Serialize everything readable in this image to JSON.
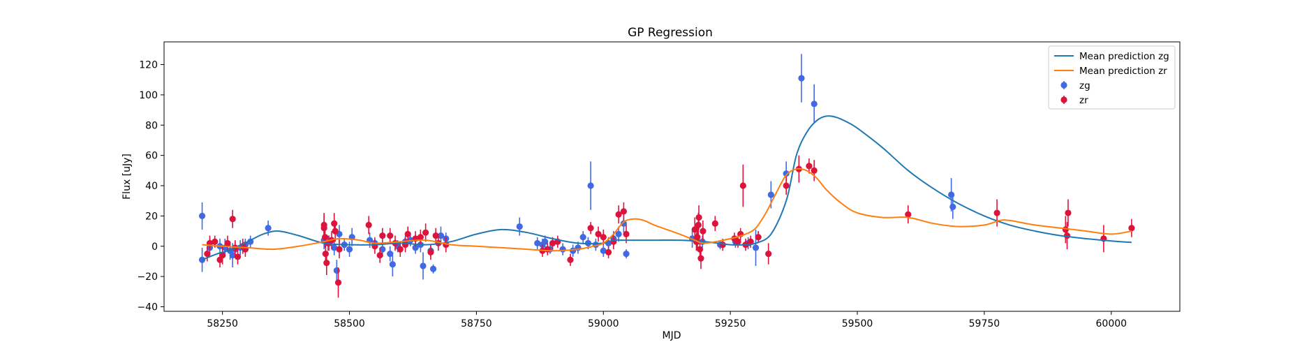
{
  "chart_data": {
    "type": "scatter",
    "title": "GP Regression",
    "xlabel": "MJD",
    "ylabel": "Flux [uJy]",
    "xlim": [
      58135,
      60135
    ],
    "ylim": [
      -43,
      135
    ],
    "xticks": [
      58250,
      58500,
      58750,
      59000,
      59250,
      59500,
      59750,
      60000
    ],
    "yticks": [
      -40,
      -20,
      0,
      20,
      40,
      60,
      80,
      100,
      120
    ],
    "grid": false,
    "legend_position": "top-right",
    "legend": [
      "Mean prediction zg",
      "Mean prediction zr",
      "zg",
      "zr"
    ],
    "colors": {
      "zg_line": "#1f77b4",
      "zr_line": "#ff7f0e",
      "zg_points": "#4169e1",
      "zr_points": "#dc143c"
    },
    "series": [
      {
        "name": "Mean prediction zg",
        "kind": "line",
        "points": [
          [
            58210,
            -9
          ],
          [
            58240,
            -5
          ],
          [
            58270,
            -2
          ],
          [
            58300,
            3
          ],
          [
            58330,
            8
          ],
          [
            58360,
            10
          ],
          [
            58400,
            7
          ],
          [
            58450,
            2
          ],
          [
            58500,
            1
          ],
          [
            58550,
            1
          ],
          [
            58600,
            2
          ],
          [
            58650,
            1
          ],
          [
            58700,
            3
          ],
          [
            58750,
            8
          ],
          [
            58800,
            11
          ],
          [
            58850,
            9
          ],
          [
            58900,
            5
          ],
          [
            58950,
            2
          ],
          [
            59000,
            2
          ],
          [
            59020,
            4
          ],
          [
            59040,
            4
          ],
          [
            59100,
            4
          ],
          [
            59150,
            4
          ],
          [
            59200,
            3
          ],
          [
            59250,
            1
          ],
          [
            59280,
            1
          ],
          [
            59300,
            2
          ],
          [
            59330,
            8
          ],
          [
            59360,
            30
          ],
          [
            59380,
            60
          ],
          [
            59400,
            75
          ],
          [
            59420,
            83
          ],
          [
            59440,
            86
          ],
          [
            59460,
            85
          ],
          [
            59480,
            82
          ],
          [
            59500,
            78
          ],
          [
            59550,
            65
          ],
          [
            59600,
            50
          ],
          [
            59650,
            38
          ],
          [
            59700,
            28
          ],
          [
            59750,
            20
          ],
          [
            59800,
            14
          ],
          [
            59850,
            10
          ],
          [
            59900,
            7
          ],
          [
            59950,
            5
          ],
          [
            60000,
            3.5
          ],
          [
            60040,
            2.5
          ]
        ]
      },
      {
        "name": "Mean prediction zr",
        "kind": "line",
        "points": [
          [
            58210,
            1
          ],
          [
            58250,
            0
          ],
          [
            58300,
            -1
          ],
          [
            58350,
            -2
          ],
          [
            58400,
            0
          ],
          [
            58450,
            3
          ],
          [
            58480,
            5
          ],
          [
            58520,
            4
          ],
          [
            58550,
            2
          ],
          [
            58600,
            3
          ],
          [
            58650,
            4
          ],
          [
            58700,
            1
          ],
          [
            58750,
            0
          ],
          [
            58800,
            -1
          ],
          [
            58850,
            -2
          ],
          [
            58900,
            -3
          ],
          [
            58950,
            -2
          ],
          [
            58980,
            0
          ],
          [
            59000,
            2
          ],
          [
            59020,
            8
          ],
          [
            59040,
            16
          ],
          [
            59060,
            18
          ],
          [
            59080,
            17
          ],
          [
            59100,
            14
          ],
          [
            59150,
            8
          ],
          [
            59180,
            4
          ],
          [
            59200,
            2
          ],
          [
            59250,
            5
          ],
          [
            59280,
            8
          ],
          [
            59300,
            12
          ],
          [
            59320,
            22
          ],
          [
            59340,
            35
          ],
          [
            59360,
            47
          ],
          [
            59380,
            51
          ],
          [
            59400,
            50
          ],
          [
            59420,
            45
          ],
          [
            59440,
            37
          ],
          [
            59470,
            28
          ],
          [
            59500,
            22
          ],
          [
            59550,
            19
          ],
          [
            59600,
            19
          ],
          [
            59650,
            15
          ],
          [
            59700,
            13
          ],
          [
            59750,
            14
          ],
          [
            59780,
            17
          ],
          [
            59800,
            17
          ],
          [
            59850,
            14
          ],
          [
            59900,
            12
          ],
          [
            59950,
            10
          ],
          [
            60000,
            8
          ],
          [
            60040,
            10
          ]
        ]
      },
      {
        "name": "zg",
        "kind": "errorbar",
        "points": [
          [
            58210,
            20,
            9
          ],
          [
            58210,
            -9,
            8
          ],
          [
            58225,
            -1,
            6
          ],
          [
            58245,
            0,
            5
          ],
          [
            58255,
            -1,
            6
          ],
          [
            58265,
            -3,
            6
          ],
          [
            58270,
            -6,
            8
          ],
          [
            58275,
            -2,
            5
          ],
          [
            58285,
            -1,
            5
          ],
          [
            58295,
            1,
            4
          ],
          [
            58305,
            3,
            4
          ],
          [
            58340,
            12,
            5
          ],
          [
            58450,
            4,
            6
          ],
          [
            58460,
            2,
            5
          ],
          [
            58470,
            -1,
            5
          ],
          [
            58475,
            -16,
            7
          ],
          [
            58480,
            8,
            6
          ],
          [
            58490,
            1,
            4
          ],
          [
            58500,
            -2,
            5
          ],
          [
            58505,
            6,
            6
          ],
          [
            58540,
            4,
            5
          ],
          [
            58550,
            2,
            4
          ],
          [
            58565,
            -2,
            5
          ],
          [
            58580,
            -5,
            5
          ],
          [
            58585,
            -12,
            8
          ],
          [
            58595,
            0,
            4
          ],
          [
            58610,
            3,
            4
          ],
          [
            58620,
            4,
            4
          ],
          [
            58630,
            -1,
            4
          ],
          [
            58640,
            1,
            5
          ],
          [
            58645,
            -13,
            9
          ],
          [
            58660,
            -3,
            4
          ],
          [
            58665,
            -15,
            3
          ],
          [
            58680,
            7,
            6
          ],
          [
            58690,
            5,
            4
          ],
          [
            58835,
            13,
            6
          ],
          [
            58870,
            2,
            4
          ],
          [
            58880,
            1,
            4
          ],
          [
            58885,
            3,
            4
          ],
          [
            58895,
            -2,
            3
          ],
          [
            58920,
            -2,
            4
          ],
          [
            58940,
            -3,
            4
          ],
          [
            58950,
            -1,
            4
          ],
          [
            58960,
            6,
            4
          ],
          [
            58970,
            2,
            4
          ],
          [
            58975,
            40,
            16
          ],
          [
            58985,
            1,
            4
          ],
          [
            59000,
            -3,
            4
          ],
          [
            59010,
            2,
            4
          ],
          [
            59020,
            5,
            5
          ],
          [
            59030,
            8,
            5
          ],
          [
            59040,
            15,
            6
          ],
          [
            59045,
            -5,
            3
          ],
          [
            59175,
            5,
            6
          ],
          [
            59185,
            3,
            5
          ],
          [
            59195,
            3,
            4
          ],
          [
            59230,
            1,
            3
          ],
          [
            59260,
            3,
            4
          ],
          [
            59285,
            2,
            4
          ],
          [
            59300,
            -1,
            12
          ],
          [
            59330,
            34,
            9
          ],
          [
            59360,
            48,
            8
          ],
          [
            59390,
            111,
            16
          ],
          [
            59415,
            94,
            13
          ],
          [
            59685,
            34,
            11
          ],
          [
            59688,
            26,
            8
          ]
        ]
      },
      {
        "name": "zr",
        "kind": "errorbar",
        "points": [
          [
            58220,
            -5,
            5
          ],
          [
            58225,
            2,
            5
          ],
          [
            58235,
            3,
            4
          ],
          [
            58245,
            -9,
            5
          ],
          [
            58250,
            -6,
            6
          ],
          [
            58260,
            2,
            5
          ],
          [
            58270,
            18,
            6
          ],
          [
            58275,
            -1,
            5
          ],
          [
            58280,
            -7,
            5
          ],
          [
            58290,
            0,
            5
          ],
          [
            58295,
            -2,
            5
          ],
          [
            58450,
            14,
            8
          ],
          [
            58450,
            12,
            8
          ],
          [
            58452,
            6,
            7
          ],
          [
            58453,
            -5,
            8
          ],
          [
            58455,
            -11,
            8
          ],
          [
            58458,
            2,
            5
          ],
          [
            58465,
            4,
            6
          ],
          [
            58470,
            15,
            7
          ],
          [
            58472,
            10,
            7
          ],
          [
            58478,
            -24,
            10
          ],
          [
            58480,
            -2,
            6
          ],
          [
            58538,
            14,
            6
          ],
          [
            58550,
            0,
            5
          ],
          [
            58560,
            -6,
            5
          ],
          [
            58565,
            7,
            5
          ],
          [
            58580,
            7,
            5
          ],
          [
            58590,
            2,
            5
          ],
          [
            58600,
            -2,
            5
          ],
          [
            58610,
            1,
            5
          ],
          [
            58615,
            8,
            5
          ],
          [
            58630,
            5,
            5
          ],
          [
            58640,
            6,
            5
          ],
          [
            58650,
            9,
            6
          ],
          [
            58660,
            -4,
            5
          ],
          [
            58670,
            7,
            5
          ],
          [
            58675,
            2,
            5
          ],
          [
            58690,
            1,
            5
          ],
          [
            58880,
            -3,
            4
          ],
          [
            58890,
            -2,
            4
          ],
          [
            58900,
            2,
            4
          ],
          [
            58910,
            3,
            4
          ],
          [
            58935,
            -9,
            4
          ],
          [
            58975,
            12,
            4
          ],
          [
            58990,
            8,
            5
          ],
          [
            59000,
            6,
            5
          ],
          [
            59010,
            -4,
            4
          ],
          [
            59020,
            3,
            5
          ],
          [
            59030,
            21,
            6
          ],
          [
            59040,
            23,
            6
          ],
          [
            59045,
            8,
            6
          ],
          [
            59180,
            11,
            8
          ],
          [
            59183,
            3,
            6
          ],
          [
            59185,
            6,
            7
          ],
          [
            59187,
            14,
            8
          ],
          [
            59188,
            19,
            8
          ],
          [
            59190,
            -2,
            6
          ],
          [
            59192,
            -8,
            7
          ],
          [
            59196,
            10,
            7
          ],
          [
            59220,
            15,
            5
          ],
          [
            59235,
            1,
            4
          ],
          [
            59258,
            5,
            4
          ],
          [
            59265,
            3,
            4
          ],
          [
            59270,
            8,
            4
          ],
          [
            59275,
            40,
            14
          ],
          [
            59280,
            1,
            4
          ],
          [
            59290,
            3,
            4
          ],
          [
            59305,
            6,
            4
          ],
          [
            59325,
            -5,
            7
          ],
          [
            59360,
            40,
            6
          ],
          [
            59385,
            51,
            9
          ],
          [
            59405,
            53,
            5
          ],
          [
            59415,
            50,
            7
          ],
          [
            59600,
            21,
            6
          ],
          [
            59775,
            22,
            9
          ],
          [
            59910,
            11,
            9
          ],
          [
            59913,
            7,
            9
          ],
          [
            59915,
            22,
            9
          ],
          [
            59985,
            5,
            9
          ],
          [
            60040,
            12,
            6
          ]
        ]
      }
    ]
  }
}
